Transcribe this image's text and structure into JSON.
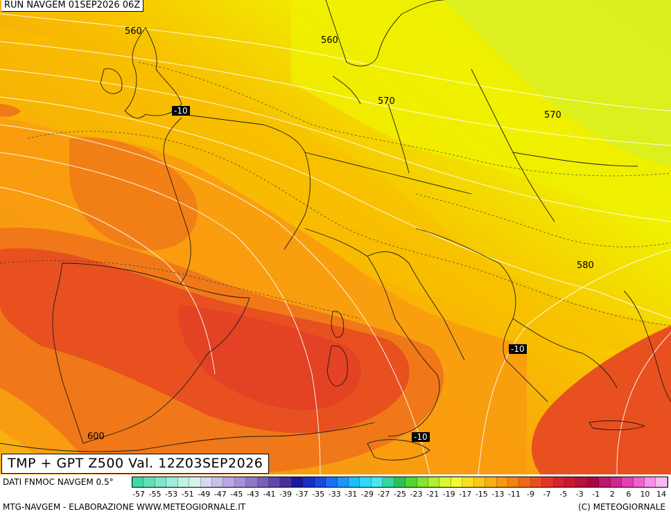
{
  "run_label": "RUN NAVGEM 01SEP2026 06Z",
  "title": "TMP + GPT Z500 Val. 12Z03SEP2026",
  "source": "DATI FNMOC NAVGEM 0.5°",
  "elaboration": "MTG-NAVGEM - ELABORAZIONE WWW.METEOGIORNALE.IT",
  "copyright": "(C) METEOGIORNALE",
  "geopotential_labels": [
    "560",
    "560",
    "570",
    "570",
    "580",
    "600"
  ],
  "temperature_labels": [
    "-10",
    "-10",
    "-10"
  ],
  "scale_ticks": [
    "-57",
    "-55",
    "-53",
    "-51",
    "-49",
    "-47",
    "-45",
    "-43",
    "-41",
    "-39",
    "-37",
    "-35",
    "-33",
    "-31",
    "-29",
    "-27",
    "-25",
    "-23",
    "-21",
    "-19",
    "-17",
    "-15",
    "-13",
    "-11",
    "-9",
    "-7",
    "-5",
    "-3",
    "-1",
    "2",
    "6",
    "10",
    "14"
  ],
  "scale_colors": [
    "#3fd9a8",
    "#5fe0b8",
    "#7fe6c8",
    "#9fecd8",
    "#bff2e4",
    "#d8f0f0",
    "#d8d8f0",
    "#c8c0e8",
    "#b8a8e0",
    "#a890d8",
    "#9078c8",
    "#7860b8",
    "#6048a8",
    "#483098",
    "#1818a0",
    "#1830c0",
    "#1848e0",
    "#1870f0",
    "#1898f8",
    "#18c0f8",
    "#30d8f8",
    "#48e8e8",
    "#30d8a0",
    "#30c050",
    "#50d830",
    "#80e830",
    "#b0f030",
    "#d8f830",
    "#f8f830",
    "#f8e020",
    "#f8c818",
    "#f8b010",
    "#f89810",
    "#f88010",
    "#f06818",
    "#e85020",
    "#e03828",
    "#d82030",
    "#c81830",
    "#b81038",
    "#a80840",
    "#c01870",
    "#d02890",
    "#e040b0",
    "#f060d0",
    "#f890e8",
    "#f8b8f0"
  ],
  "field_colors": {
    "yellow_green": "#d8f020",
    "yellow": "#f0f000",
    "light_orange": "#f8c000",
    "orange": "#f89c10",
    "dark_orange": "#f07818",
    "red_orange": "#e85020",
    "red": "#e03828"
  }
}
